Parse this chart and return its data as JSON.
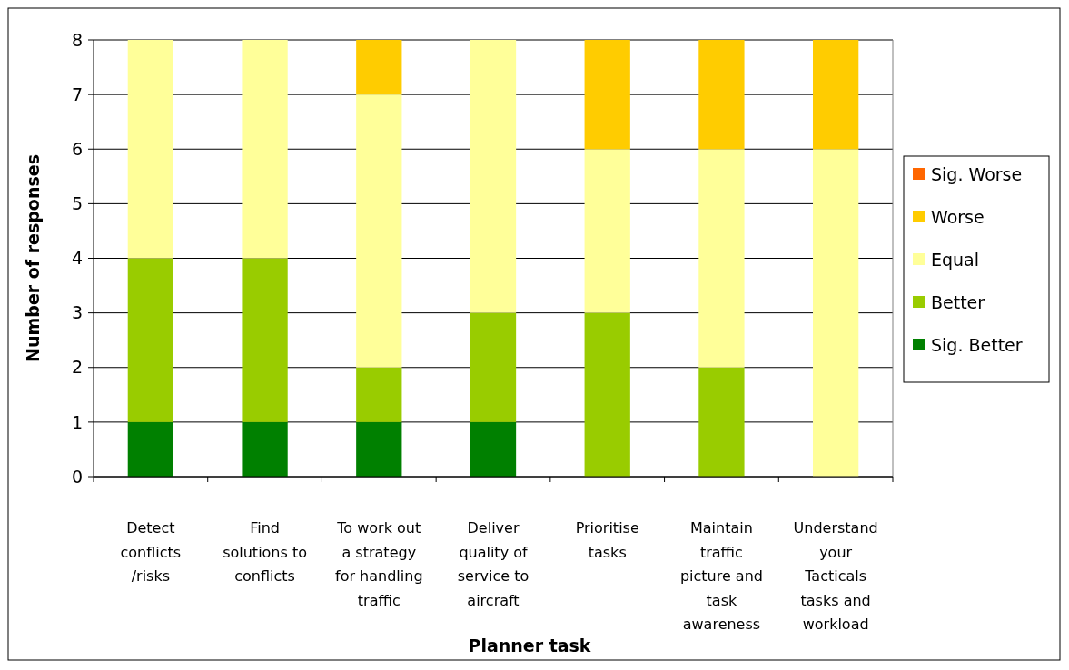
{
  "chart_data": {
    "type": "bar",
    "stacked": true,
    "xlabel": "Planner task",
    "ylabel": "Number of responses",
    "categories": [
      "Detect conflicts /risks",
      "Find solutions to conflicts",
      "To work out a strategy for handling traffic",
      "Deliver quality of service to aircraft",
      "Prioritise tasks",
      "Maintain traffic picture and task awareness",
      "Understand your Tacticals tasks and workload"
    ],
    "series": [
      {
        "name": "Sig. Better",
        "color": "#008000",
        "values": [
          1,
          1,
          1,
          1,
          0,
          0,
          0
        ]
      },
      {
        "name": "Better",
        "color": "#99cc00",
        "values": [
          3,
          3,
          1,
          2,
          3,
          2,
          0
        ]
      },
      {
        "name": "Equal",
        "color": "#ffff99",
        "values": [
          4,
          4,
          5,
          5,
          3,
          4,
          6
        ]
      },
      {
        "name": "Worse",
        "color": "#ffcc00",
        "values": [
          0,
          0,
          1,
          0,
          2,
          2,
          2
        ]
      },
      {
        "name": "Sig. Worse",
        "color": "#ff6600",
        "values": [
          0,
          0,
          0,
          0,
          0,
          0,
          0
        ]
      }
    ],
    "ylim": [
      0,
      8
    ],
    "yticks": [
      0,
      1,
      2,
      3,
      4,
      5,
      6,
      7,
      8
    ],
    "grid": "y",
    "legend": "right"
  }
}
